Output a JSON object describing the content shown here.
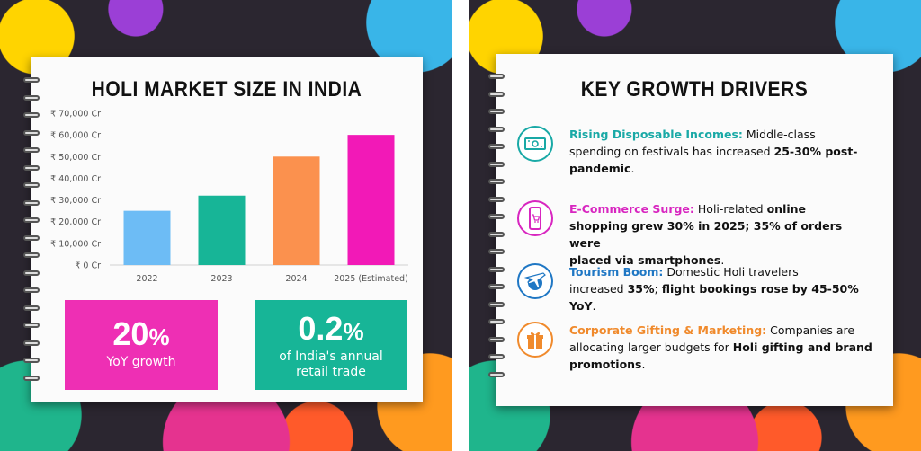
{
  "left": {
    "title": "HOLI MARKET SIZE IN INDIA",
    "stats": [
      {
        "value": "20",
        "unit": "%",
        "label": "YoY growth",
        "color": "#ee2fb4"
      },
      {
        "value": "0.2",
        "unit": "%",
        "label_lines": [
          "of India's annual",
          "retail trade"
        ],
        "color": "#17b597"
      }
    ]
  },
  "chart_data": {
    "type": "bar",
    "title": "HOLI MARKET SIZE IN INDIA",
    "categories": [
      "2022",
      "2023",
      "2024",
      "2025 (Estimated)"
    ],
    "values": [
      25000,
      32000,
      50000,
      60000
    ],
    "colors": [
      "#6dbcf5",
      "#17b597",
      "#fb914e",
      "#f219b7"
    ],
    "ylim": [
      0,
      70000
    ],
    "yticks": [
      "₹ 0 Cr",
      "₹ 10,000 Cr",
      "₹ 20,000 Cr",
      "₹ 30,000 Cr",
      "₹ 40,000 Cr",
      "₹ 50,000 Cr",
      "₹ 60,000 Cr",
      "₹ 70,000 Cr"
    ],
    "grid": false,
    "legend": "none"
  },
  "right": {
    "title": "KEY GROWTH DRIVERS",
    "drivers": [
      {
        "icon": "money-icon",
        "color": "#19a9a6",
        "title": "Rising Disposable Incomes:",
        "lines": [
          [
            {
              "t": " Middle-class"
            }
          ],
          [
            {
              "t": "spending on festivals has increased "
            },
            {
              "t": "25-30% post-",
              "b": true
            }
          ],
          [
            {
              "t": "pandemic",
              "b": true
            },
            {
              "t": "."
            }
          ]
        ]
      },
      {
        "icon": "smartphone-cart-icon",
        "color": "#d826c0",
        "title": "E-Commerce Surge:",
        "lines": [
          [
            {
              "t": " Holi-related "
            },
            {
              "t": "online",
              "b": true
            }
          ],
          [
            {
              "t": "shopping grew 30% in 2025; 35% of orders were",
              "b": true
            }
          ],
          [
            {
              "t": "placed via smartphones",
              "b": true
            },
            {
              "t": "."
            }
          ]
        ]
      },
      {
        "icon": "airplane-globe-icon",
        "color": "#1f77c4",
        "title": "Tourism Boom:",
        "lines": [
          [
            {
              "t": " Domestic Holi travelers"
            }
          ],
          [
            {
              "t": "increased "
            },
            {
              "t": "35%",
              "b": true
            },
            {
              "t": "; "
            },
            {
              "t": "flight bookings rose by 45-50% YoY",
              "b": true
            },
            {
              "t": "."
            }
          ]
        ]
      },
      {
        "icon": "gift-icon",
        "color": "#f08a2c",
        "title": "Corporate Gifting & Marketing:",
        "lines": [
          [
            {
              "t": " Companies are"
            }
          ],
          [
            {
              "t": "allocating larger budgets for "
            },
            {
              "t": "Holi gifting and brand",
              "b": true
            }
          ],
          [
            {
              "t": "promotions",
              "b": true
            },
            {
              "t": "."
            }
          ]
        ]
      }
    ]
  }
}
